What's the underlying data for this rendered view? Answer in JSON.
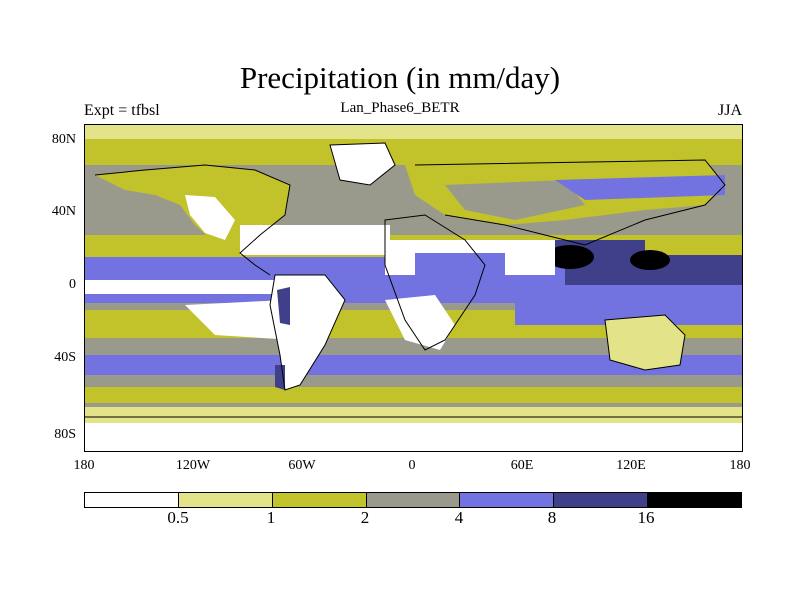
{
  "title": "Precipitation (in mm/day)",
  "subtitle": "Lan_Phase6_BETR",
  "left_label": "Expt = tfbsl",
  "right_label": "JJA",
  "y_ticks": [
    "80N",
    "40N",
    "0",
    "40S",
    "80S"
  ],
  "x_ticks": [
    "180",
    "120W",
    "60W",
    "0",
    "60E",
    "120E",
    "180"
  ],
  "colorbar": {
    "labels": [
      "0.5",
      "1",
      "2",
      "4",
      "8",
      "16"
    ],
    "colors": [
      "#ffffff",
      "#e3e38a",
      "#c2c22a",
      "#9a9a8c",
      "#7272e0",
      "#3f3f8a",
      "#000000"
    ]
  },
  "colors": {
    "white": "#ffffff",
    "light_yellow": "#e3e38a",
    "olive": "#c2c22a",
    "gray": "#9a9a8c",
    "blue": "#7272e0",
    "dark_blue": "#3f3f8a",
    "black": "#000000"
  }
}
